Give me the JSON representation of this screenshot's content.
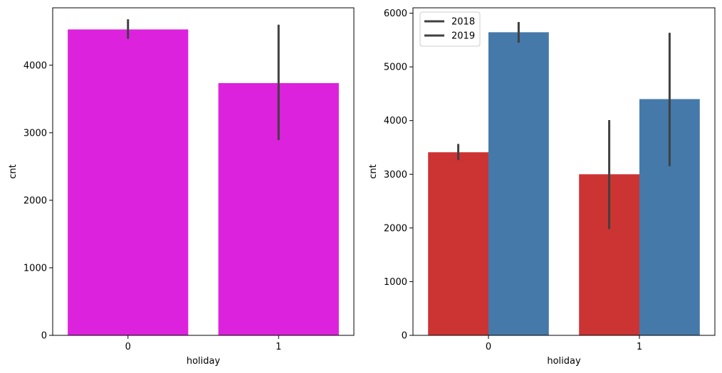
{
  "chart_data": [
    {
      "type": "bar",
      "xlabel": "holiday",
      "ylabel": "cnt",
      "categories": [
        "0",
        "1"
      ],
      "ylim": [
        0,
        4850
      ],
      "yticks": [
        0,
        1000,
        2000,
        3000,
        4000
      ],
      "series": [
        {
          "color": "#dd22dd",
          "values": [
            4530,
            3735
          ],
          "err_low": [
            4390,
            2890
          ],
          "err_high": [
            4680,
            4600
          ]
        }
      ]
    },
    {
      "type": "bar",
      "xlabel": "holiday",
      "ylabel": "cnt",
      "categories": [
        "0",
        "1"
      ],
      "ylim": [
        0,
        6100
      ],
      "yticks": [
        0,
        1000,
        2000,
        3000,
        4000,
        5000,
        6000
      ],
      "legend": {
        "placement": "top-left",
        "line_color": "#404040"
      },
      "series": [
        {
          "name": "2018",
          "color": "#cc3333",
          "values": [
            3410,
            3000
          ],
          "err_low": [
            3265,
            1980
          ],
          "err_high": [
            3565,
            4010
          ]
        },
        {
          "name": "2019",
          "color": "#4479aa",
          "values": [
            5645,
            4400
          ],
          "err_low": [
            5450,
            3150
          ],
          "err_high": [
            5835,
            5635
          ]
        }
      ]
    }
  ]
}
